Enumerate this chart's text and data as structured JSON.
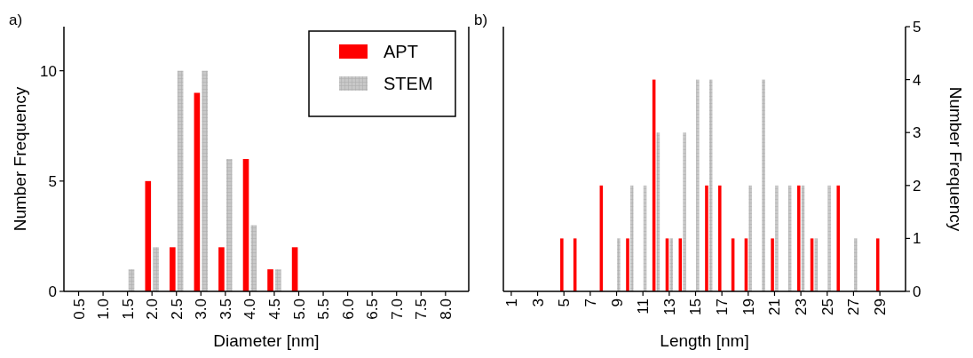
{
  "chart_data": [
    {
      "type": "bar",
      "annotations": [
        "a)"
      ],
      "xlabel": "Diameter [nm]",
      "ylabel": "Number Frequency",
      "categories": [
        "0.5",
        "1.0",
        "1.5",
        "2.0",
        "2.5",
        "3.0",
        "3.5",
        "4.0",
        "4.5",
        "5.0",
        "5.5",
        "6.0",
        "6.5",
        "7.0",
        "7.5",
        "8.0"
      ],
      "series": [
        {
          "name": "APT",
          "color": "#ff0000",
          "values": [
            0,
            0,
            0,
            5,
            2,
            9,
            2,
            6,
            1,
            2,
            0,
            0,
            0,
            0,
            0,
            0
          ]
        },
        {
          "name": "STEM",
          "color": "#c8c8c8",
          "values": [
            0,
            0,
            1,
            2,
            10,
            10,
            6,
            3,
            1,
            0,
            0,
            0,
            0,
            0,
            0,
            0
          ]
        }
      ],
      "ylim": [
        0,
        12
      ],
      "yticks": [
        0,
        5,
        10
      ],
      "legend": "top right"
    },
    {
      "type": "bar",
      "annotations": [
        "b)"
      ],
      "xlabel": "Length [nm]",
      "y2label": "Number Frequency",
      "categories": [
        "1",
        null,
        "3",
        null,
        "5",
        null,
        "7",
        null,
        "9",
        null,
        "11",
        null,
        "13",
        null,
        "15",
        null,
        "17",
        null,
        "19",
        null,
        "21",
        null,
        "23",
        null,
        "25",
        null,
        "27",
        null,
        "29",
        null
      ],
      "series": [
        {
          "color": "#ff0000",
          "axis": "y2",
          "values": [
            0,
            0,
            0,
            0,
            1,
            1,
            0,
            2,
            0,
            1,
            0,
            4,
            1,
            1,
            0,
            2,
            2,
            1,
            1,
            0,
            1,
            0,
            2,
            1,
            0,
            2,
            0,
            0,
            1,
            0
          ]
        },
        {
          "color": "#c8c8c8",
          "axis": "y2",
          "values": [
            0,
            0,
            0,
            0,
            0,
            0,
            0,
            0,
            1,
            2,
            2,
            3,
            1,
            3,
            4,
            4,
            0,
            0,
            2,
            4,
            2,
            2,
            2,
            1,
            2,
            0,
            1,
            0,
            0,
            0
          ]
        }
      ],
      "y2lim": [
        0,
        5
      ],
      "y2ticks": [
        0,
        1,
        2,
        3,
        4,
        5
      ],
      "legend": false
    }
  ]
}
